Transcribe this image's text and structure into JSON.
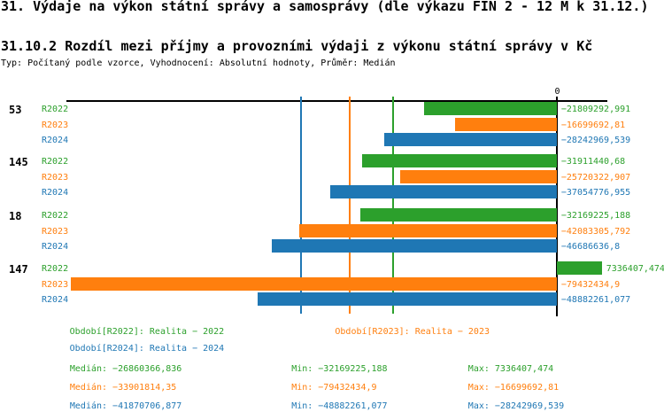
{
  "header": {
    "title": "31. Výdaje na výkon státní správy a samosprávy (dle výkazu FIN 2 - 12 M k 31.12.)",
    "subtitle": "31.10.2 Rozdíl mezi příjmy a provozními výdaji z výkonu státní správy v Kč",
    "type_line": "Typ: Počítaný podle vzorce, Vyhodnocení: Absolutní hodnoty, Průměr: Medián"
  },
  "chart_data": {
    "type": "bar",
    "orientation": "horizontal",
    "title": "31.10.2 Rozdíl mezi příjmy a provozními výdaji z výkonu státní správy v Kč",
    "categories": [
      "53",
      "145",
      "18",
      "147"
    ],
    "series": [
      {
        "name": "R2022",
        "color": "#2ca02c",
        "values": [
          -21809292.991,
          -31911440.68,
          -32169225.188,
          7336407.474
        ],
        "value_labels": [
          "-21809292,991",
          "-31911440,68",
          "-32169225,188",
          "7336407,474"
        ],
        "median": -26860366.836
      },
      {
        "name": "R2023",
        "color": "#ff7f0e",
        "values": [
          -16699692.81,
          -25720322.907,
          -42083305.792,
          -79432434.9
        ],
        "value_labels": [
          "-16699692,81",
          "-25720322,907",
          "-42083305,792",
          "-79432434,9"
        ],
        "median": -33901814.35
      },
      {
        "name": "R2024",
        "color": "#1f77b4",
        "values": [
          -28242969.539,
          -37054776.955,
          -46686636.8,
          -48882261.077
        ],
        "value_labels": [
          "-28242969,539",
          "-37054776,955",
          "-46686636,8",
          "-48882261,077"
        ],
        "median": -41870706.877
      }
    ],
    "xlim": [
      -80188000,
      8171000
    ],
    "zero_tick_label": "0",
    "grid": "median-guide-lines",
    "legend_position": "bottom",
    "xlabel": "",
    "ylabel": ""
  },
  "legend": {
    "entries": [
      {
        "label": "Období[R2022]: Realita - 2022",
        "color": "#2ca02c"
      },
      {
        "label": "Období[R2023]: Realita - 2023",
        "color": "#ff7f0e"
      },
      {
        "label": "Období[R2024]: Realita - 2024",
        "color": "#1f77b4"
      }
    ]
  },
  "stats": {
    "rows": [
      {
        "color": "#2ca02c",
        "median": "Medián: -26860366,836",
        "min": "Min: -32169225,188",
        "max": "Max: 7336407,474"
      },
      {
        "color": "#ff7f0e",
        "median": "Medián: -33901814,35",
        "min": "Min: -79432434,9",
        "max": "Max: -16699692,81"
      },
      {
        "color": "#1f77b4",
        "median": "Medián: -41870706,877",
        "min": "Min: -48882261,077",
        "max": "Max: -28242969,539"
      }
    ]
  }
}
